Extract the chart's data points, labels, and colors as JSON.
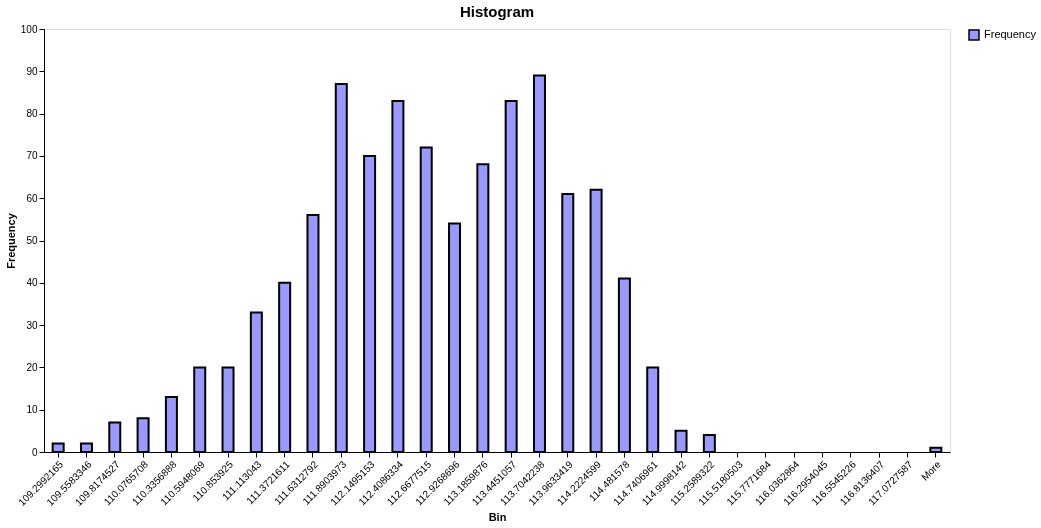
{
  "chart_data": {
    "type": "bar",
    "title": "Histogram",
    "xlabel": "Bin",
    "ylabel": "Frequency",
    "categories": [
      "109.2992165",
      "109.5583346",
      "109.8174527",
      "110.0765708",
      "110.3356888",
      "110.5948069",
      "110.853925",
      "111.113043",
      "111.3721611",
      "111.6312792",
      "111.8903973",
      "112.1495153",
      "112.4086334",
      "112.6677515",
      "112.9268696",
      "113.1859876",
      "113.4451057",
      "113.7042238",
      "113.9633419",
      "114.2224599",
      "114.481578",
      "114.7406961",
      "114.9998142",
      "115.2589322",
      "115.5180503",
      "115.7771684",
      "116.0362864",
      "116.2954045",
      "116.5545226",
      "116.8136407",
      "117.0727587",
      "More"
    ],
    "series": [
      {
        "name": "Frequency",
        "color": "#9999ff",
        "values": [
          2,
          2,
          7,
          8,
          13,
          20,
          20,
          33,
          40,
          56,
          87,
          70,
          83,
          72,
          54,
          68,
          83,
          89,
          61,
          62,
          41,
          20,
          5,
          4,
          0,
          0,
          0,
          0,
          0,
          0,
          0,
          1
        ]
      }
    ],
    "ylim": [
      0,
      100
    ],
    "yticks": [
      0,
      10,
      20,
      30,
      40,
      50,
      60,
      70,
      80,
      90,
      100
    ],
    "grid": false,
    "legend": "right"
  }
}
